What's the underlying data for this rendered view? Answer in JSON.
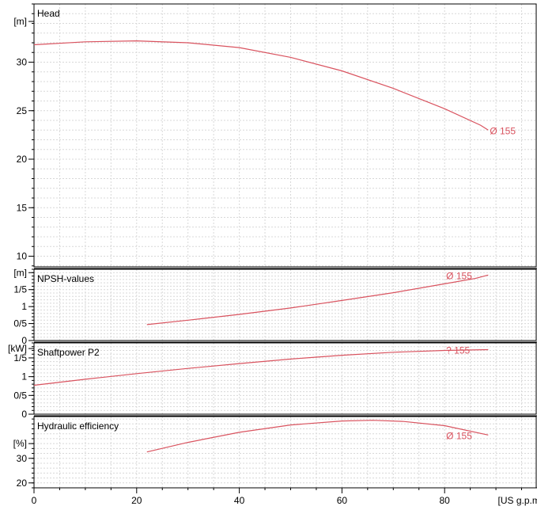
{
  "colors": {
    "curve": "#d9535f",
    "grid": "#d8d8d8",
    "axis": "#000000",
    "panel_border": "#000000"
  },
  "chart_data": {
    "type": "line",
    "x_unit": "[US g.p.m.]",
    "xlim": [
      0,
      98
    ],
    "x_ticks": [
      0,
      20,
      40,
      60,
      80
    ],
    "x_tick_labels": [
      "0",
      "20",
      "40",
      "60",
      "80"
    ],
    "grid": true,
    "panels": [
      {
        "id": "head",
        "title": "Head",
        "unit": "[m]",
        "ylim": [
          8.9,
          36.0
        ],
        "y_ticks": [
          10,
          15,
          20,
          25,
          30
        ],
        "y_tick_labels": [
          "10",
          "15",
          "20",
          "25",
          "30"
        ],
        "unit_value": 34.2,
        "curve_label": "Ø 155",
        "label_at": [
          88.5,
          23.0
        ],
        "series": [
          {
            "x": 0,
            "y": 31.8
          },
          {
            "x": 10,
            "y": 32.1
          },
          {
            "x": 20,
            "y": 32.2
          },
          {
            "x": 30,
            "y": 32.0
          },
          {
            "x": 40,
            "y": 31.5
          },
          {
            "x": 50,
            "y": 30.5
          },
          {
            "x": 60,
            "y": 29.1
          },
          {
            "x": 70,
            "y": 27.3
          },
          {
            "x": 80,
            "y": 25.2
          },
          {
            "x": 87,
            "y": 23.5
          },
          {
            "x": 88.5,
            "y": 23.0
          }
        ]
      },
      {
        "id": "npsh",
        "title": "NPSH-values",
        "unit": "[m]",
        "ylim": [
          0,
          2.1
        ],
        "y_ticks": [
          0,
          0.5,
          1,
          1.5
        ],
        "y_tick_labels": [
          "0",
          "0/5",
          "1",
          "1/5"
        ],
        "unit_value": 2.0,
        "curve_label": "Ø 155",
        "label_at": [
          80.0,
          1.93
        ],
        "series": [
          {
            "x": 22,
            "y": 0.47
          },
          {
            "x": 30,
            "y": 0.6
          },
          {
            "x": 40,
            "y": 0.77
          },
          {
            "x": 50,
            "y": 0.96
          },
          {
            "x": 60,
            "y": 1.18
          },
          {
            "x": 70,
            "y": 1.41
          },
          {
            "x": 80,
            "y": 1.67
          },
          {
            "x": 86,
            "y": 1.83
          },
          {
            "x": 88.5,
            "y": 1.93
          }
        ]
      },
      {
        "id": "power",
        "title": "Shaftpower P2",
        "unit": "[kW]",
        "ylim": [
          0,
          1.9
        ],
        "y_ticks": [
          0,
          0.5,
          1,
          1.5
        ],
        "y_tick_labels": [
          "0",
          "0/5",
          "1",
          "1/5"
        ],
        "unit_value": 1.75,
        "curve_label": "? 155",
        "label_at": [
          80.0,
          1.72
        ],
        "series": [
          {
            "x": 0,
            "y": 0.77
          },
          {
            "x": 10,
            "y": 0.93
          },
          {
            "x": 20,
            "y": 1.08
          },
          {
            "x": 30,
            "y": 1.22
          },
          {
            "x": 40,
            "y": 1.35
          },
          {
            "x": 50,
            "y": 1.47
          },
          {
            "x": 60,
            "y": 1.57
          },
          {
            "x": 70,
            "y": 1.65
          },
          {
            "x": 80,
            "y": 1.7
          },
          {
            "x": 88.5,
            "y": 1.72
          }
        ]
      },
      {
        "id": "eff",
        "title": "Hydraulic efficiency",
        "unit": "[%]",
        "ylim": [
          18,
          47
        ],
        "y_ticks": [
          20,
          30
        ],
        "y_tick_labels": [
          "20",
          "30"
        ],
        "unit_value": 36,
        "curve_label": "Ø 155",
        "label_at": [
          80.0,
          39.5
        ],
        "series": [
          {
            "x": 22,
            "y": 32.6
          },
          {
            "x": 30,
            "y": 36.5
          },
          {
            "x": 40,
            "y": 40.6
          },
          {
            "x": 50,
            "y": 43.6
          },
          {
            "x": 60,
            "y": 45.2
          },
          {
            "x": 66,
            "y": 45.5
          },
          {
            "x": 72,
            "y": 45.0
          },
          {
            "x": 80,
            "y": 43.3
          },
          {
            "x": 88.5,
            "y": 39.5
          }
        ]
      }
    ]
  }
}
